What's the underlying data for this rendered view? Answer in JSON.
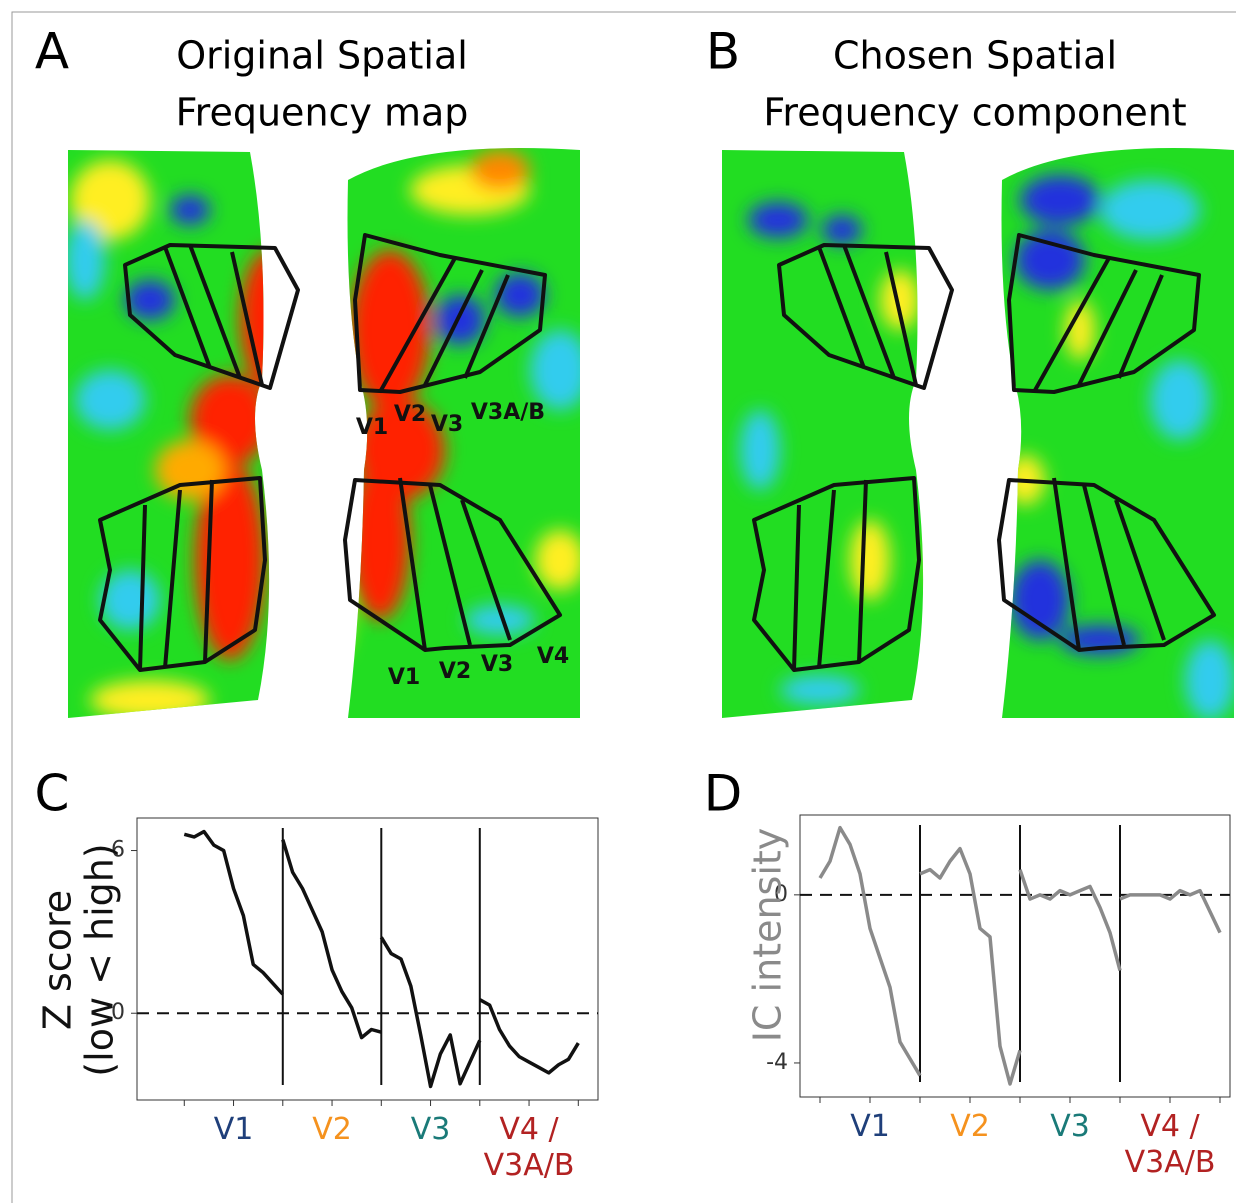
{
  "panel_labels": [
    "A",
    "B",
    "C",
    "D"
  ],
  "maps": [
    {
      "title": [
        "Original Spatial",
        "Frequency map"
      ],
      "roi_labels": [
        "V1",
        "V2",
        "V3",
        "V3A/B",
        "V1",
        "V2",
        "V3",
        "V4"
      ]
    },
    {
      "title": [
        "Chosen Spatial",
        "Frequency component"
      ]
    }
  ],
  "chart_data": [
    {
      "type": "line",
      "ylabel": [
        "Z score",
        "(low < high)"
      ],
      "ylabel_color": "#111111",
      "categories": [
        "V1",
        "V2",
        "V3",
        "V4 /\nV3A/B"
      ],
      "category_colors": [
        "#1f3f7a",
        "#f5921e",
        "#1a7a78",
        "#b22222"
      ],
      "xlim": [
        -0.48,
        4.2
      ],
      "xticks": [
        0,
        0.5,
        1,
        1.5,
        2,
        2.5,
        3,
        3.5,
        4
      ],
      "ylim": [
        -3.2,
        7.2
      ],
      "yticks": [
        0,
        6
      ],
      "dividers": [
        1,
        2,
        3
      ],
      "zero_line": true,
      "series": [
        {
          "color": "#111111",
          "x": [
            0,
            0.1,
            0.2,
            0.3,
            0.4,
            0.5,
            0.6,
            0.7,
            0.8,
            0.9,
            1,
            1,
            1,
            1.1,
            1.2,
            1.3,
            1.4,
            1.5,
            1.6,
            1.7,
            1.8,
            1.9,
            2,
            2,
            2,
            2.1,
            2.2,
            2.3,
            2.4,
            2.5,
            2.6,
            2.7,
            2.8,
            2.9,
            3,
            3,
            3,
            3.1,
            3.2,
            3.3,
            3.4,
            3.5,
            3.6,
            3.7,
            3.8,
            3.9,
            4
          ],
          "values": [
            6.6,
            6.5,
            6.7,
            6.2,
            6.0,
            4.6,
            3.6,
            1.8,
            1.5,
            1.1,
            0.7,
            null,
            6.4,
            5.2,
            4.6,
            3.8,
            3.0,
            1.6,
            0.8,
            0.2,
            -0.9,
            -0.6,
            -0.7,
            null,
            2.8,
            2.2,
            2.0,
            1.0,
            -0.8,
            -2.7,
            -1.5,
            -0.8,
            -2.6,
            -1.8,
            -1.0,
            null,
            0.5,
            0.3,
            -0.6,
            -1.2,
            -1.6,
            -1.8,
            -2.0,
            -2.2,
            -1.9,
            -1.7,
            -1.1
          ]
        }
      ]
    },
    {
      "type": "line",
      "ylabel": [
        "IC intensity"
      ],
      "ylabel_color": "#8a8a8a",
      "categories": [
        "V1",
        "V2",
        "V3",
        "V4 /\nV3A/B"
      ],
      "category_colors": [
        "#1f3f7a",
        "#f5921e",
        "#1a7a78",
        "#b22222"
      ],
      "xlim": [
        -0.2,
        4.1
      ],
      "xticks": [
        0,
        0.5,
        1,
        1.5,
        2,
        2.5,
        3,
        3.5,
        4
      ],
      "ylim": [
        -4.81,
        1.9
      ],
      "yticks": [
        -4,
        0
      ],
      "dividers": [
        1,
        2,
        3
      ],
      "zero_line": true,
      "series": [
        {
          "color": "#8a8a8a",
          "x": [
            0,
            0.1,
            0.2,
            0.3,
            0.4,
            0.5,
            0.6,
            0.7,
            0.8,
            0.9,
            1,
            1,
            1,
            1.1,
            1.2,
            1.3,
            1.4,
            1.5,
            1.6,
            1.7,
            1.8,
            1.9,
            2,
            2,
            2,
            2.1,
            2.2,
            2.3,
            2.4,
            2.5,
            2.6,
            2.7,
            2.8,
            2.9,
            3,
            3,
            3,
            3.1,
            3.2,
            3.3,
            3.4,
            3.5,
            3.6,
            3.7,
            3.8,
            3.9,
            4
          ],
          "values": [
            0.4,
            0.8,
            1.6,
            1.2,
            0.5,
            -0.8,
            -1.5,
            -2.2,
            -3.5,
            -3.9,
            -4.3,
            null,
            0.5,
            0.6,
            0.4,
            0.8,
            1.1,
            0.5,
            -0.8,
            -1.0,
            -3.6,
            -4.5,
            -3.7,
            null,
            0.6,
            -0.1,
            0.0,
            -0.1,
            0.1,
            0.0,
            0.1,
            0.2,
            -0.3,
            -0.9,
            -1.8,
            null,
            -0.1,
            0.0,
            0.0,
            0.0,
            0.0,
            -0.1,
            0.1,
            0.0,
            0.1,
            -0.4,
            -0.9
          ]
        }
      ]
    }
  ]
}
